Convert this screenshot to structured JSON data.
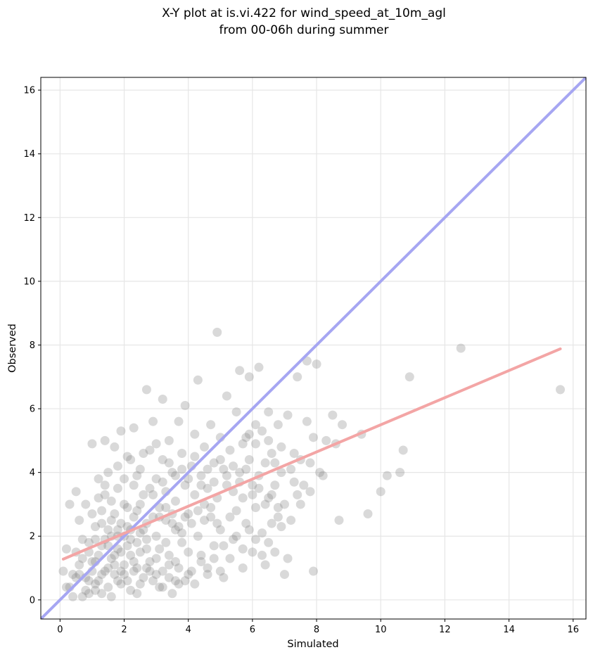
{
  "chart_data": {
    "type": "scatter",
    "title_line1": "X-Y plot at is.vi.422 for wind_speed_at_10m_agl",
    "title_line2": "from 00-06h during summer",
    "xlabel": "Simulated",
    "ylabel": "Observed",
    "xlim": [
      -0.6,
      16.4
    ],
    "ylim": [
      -0.6,
      16.4
    ],
    "xticks": [
      "0",
      "2",
      "4",
      "6",
      "8",
      "10",
      "12",
      "14",
      "16"
    ],
    "yticks": [
      "0",
      "2",
      "4",
      "6",
      "8",
      "10",
      "12",
      "14",
      "16"
    ],
    "grid": true,
    "identity_line": {
      "x": [
        -0.6,
        16.4
      ],
      "y": [
        -0.6,
        16.4
      ]
    },
    "regression_line": {
      "x": [
        0.1,
        15.6
      ],
      "y": [
        1.28,
        7.88
      ]
    },
    "colors": {
      "points": "#808080",
      "identity_line": "#a6a6f2",
      "regression_line": "#f3a5a5",
      "grid": "#e6e6e6"
    },
    "points": [
      [
        0.1,
        0.9
      ],
      [
        0.2,
        1.6
      ],
      [
        0.2,
        0.4
      ],
      [
        0.3,
        0.4
      ],
      [
        0.3,
        3.0
      ],
      [
        0.4,
        0.1
      ],
      [
        0.4,
        0.8
      ],
      [
        0.5,
        3.4
      ],
      [
        0.5,
        1.5
      ],
      [
        0.6,
        2.5
      ],
      [
        0.6,
        0.8
      ],
      [
        0.7,
        0.1
      ],
      [
        0.7,
        1.9
      ],
      [
        0.8,
        3.0
      ],
      [
        0.8,
        0.7
      ],
      [
        0.9,
        1.8
      ],
      [
        0.9,
        0.2
      ],
      [
        1.0,
        4.9
      ],
      [
        1.0,
        2.7
      ],
      [
        1.0,
        1.2
      ],
      [
        1.1,
        0.5
      ],
      [
        1.1,
        1.9
      ],
      [
        1.2,
        3.8
      ],
      [
        1.2,
        1.4
      ],
      [
        1.3,
        0.2
      ],
      [
        1.3,
        2.4
      ],
      [
        1.4,
        5.0
      ],
      [
        1.4,
        3.3
      ],
      [
        1.4,
        0.9
      ],
      [
        1.5,
        1.7
      ],
      [
        1.5,
        4.0
      ],
      [
        1.6,
        2.5
      ],
      [
        1.6,
        0.1
      ],
      [
        1.7,
        4.8
      ],
      [
        1.7,
        1.1
      ],
      [
        1.8,
        3.5
      ],
      [
        1.8,
        0.6
      ],
      [
        1.8,
        2.0
      ],
      [
        1.9,
        5.3
      ],
      [
        1.9,
        1.5
      ],
      [
        2.0,
        3.0
      ],
      [
        2.0,
        0.8
      ],
      [
        2.1,
        4.5
      ],
      [
        2.1,
        2.3
      ],
      [
        2.2,
        0.3
      ],
      [
        2.2,
        1.9
      ],
      [
        2.3,
        3.6
      ],
      [
        2.3,
        5.4
      ],
      [
        2.4,
        1.0
      ],
      [
        2.4,
        2.8
      ],
      [
        2.5,
        4.1
      ],
      [
        2.5,
        0.5
      ],
      [
        2.6,
        2.2
      ],
      [
        2.6,
        3.3
      ],
      [
        2.7,
        6.6
      ],
      [
        2.7,
        1.6
      ],
      [
        2.8,
        4.7
      ],
      [
        2.8,
        0.9
      ],
      [
        2.9,
        2.6
      ],
      [
        2.9,
        5.6
      ],
      [
        3.0,
        1.3
      ],
      [
        3.0,
        3.8
      ],
      [
        3.1,
        0.4
      ],
      [
        3.1,
        2.9
      ],
      [
        3.2,
        4.4
      ],
      [
        3.2,
        6.3
      ],
      [
        3.3,
        1.8
      ],
      [
        3.3,
        3.4
      ],
      [
        3.4,
        5.0
      ],
      [
        3.4,
        0.7
      ],
      [
        3.5,
        2.4
      ],
      [
        3.5,
        4.0
      ],
      [
        3.6,
        1.2
      ],
      [
        3.6,
        3.1
      ],
      [
        3.7,
        5.6
      ],
      [
        3.7,
        0.5
      ],
      [
        3.8,
        2.1
      ],
      [
        3.8,
        4.6
      ],
      [
        3.9,
        3.6
      ],
      [
        3.9,
        6.1
      ],
      [
        4.0,
        1.5
      ],
      [
        4.0,
        2.7
      ],
      [
        4.1,
        4.2
      ],
      [
        4.1,
        0.9
      ],
      [
        4.2,
        3.3
      ],
      [
        4.2,
        5.2
      ],
      [
        4.3,
        6.9
      ],
      [
        4.3,
        2.0
      ],
      [
        4.4,
        3.9
      ],
      [
        4.4,
        1.2
      ],
      [
        4.5,
        4.8
      ],
      [
        4.5,
        2.5
      ],
      [
        4.6,
        3.5
      ],
      [
        4.6,
        0.8
      ],
      [
        4.7,
        5.5
      ],
      [
        4.7,
        2.9
      ],
      [
        4.8,
        4.3
      ],
      [
        4.8,
        1.7
      ],
      [
        4.9,
        8.4
      ],
      [
        4.9,
        3.2
      ],
      [
        5.0,
        5.1
      ],
      [
        5.0,
        2.2
      ],
      [
        5.1,
        4.1
      ],
      [
        5.1,
        0.7
      ],
      [
        5.2,
        3.6
      ],
      [
        5.2,
        6.4
      ],
      [
        5.3,
        2.6
      ],
      [
        5.3,
        4.7
      ],
      [
        5.4,
        1.9
      ],
      [
        5.4,
        3.4
      ],
      [
        5.5,
        5.9
      ],
      [
        5.5,
        2.8
      ],
      [
        5.6,
        7.2
      ],
      [
        5.6,
        4.0
      ],
      [
        5.7,
        1.0
      ],
      [
        5.7,
        3.2
      ],
      [
        5.8,
        5.1
      ],
      [
        5.8,
        2.4
      ],
      [
        5.9,
        4.4
      ],
      [
        5.9,
        7.0
      ],
      [
        6.0,
        3.6
      ],
      [
        6.0,
        1.5
      ],
      [
        6.1,
        4.9
      ],
      [
        6.1,
        2.9
      ],
      [
        6.2,
        7.3
      ],
      [
        6.2,
        3.9
      ],
      [
        6.3,
        5.3
      ],
      [
        6.3,
        2.1
      ],
      [
        6.4,
        4.3
      ],
      [
        6.4,
        1.1
      ],
      [
        6.5,
        5.9
      ],
      [
        6.5,
        3.2
      ],
      [
        6.6,
        4.6
      ],
      [
        6.6,
        2.4
      ],
      [
        6.7,
        3.6
      ],
      [
        6.8,
        5.5
      ],
      [
        6.8,
        2.6
      ],
      [
        6.9,
        4.8
      ],
      [
        7.0,
        0.8
      ],
      [
        7.0,
        3.0
      ],
      [
        7.1,
        1.3
      ],
      [
        7.1,
        5.8
      ],
      [
        7.2,
        4.1
      ],
      [
        7.3,
        3.7
      ],
      [
        7.4,
        7.0
      ],
      [
        7.4,
        3.3
      ],
      [
        7.5,
        4.4
      ],
      [
        7.6,
        3.6
      ],
      [
        7.7,
        7.5
      ],
      [
        7.7,
        5.6
      ],
      [
        7.8,
        4.3
      ],
      [
        7.9,
        0.9
      ],
      [
        7.9,
        5.1
      ],
      [
        8.0,
        7.4
      ],
      [
        8.1,
        4.0
      ],
      [
        8.3,
        5.0
      ],
      [
        8.5,
        5.8
      ],
      [
        8.6,
        4.9
      ],
      [
        8.7,
        2.5
      ],
      [
        8.8,
        5.5
      ],
      [
        9.4,
        5.2
      ],
      [
        9.6,
        2.7
      ],
      [
        10.0,
        3.4
      ],
      [
        10.2,
        3.9
      ],
      [
        10.6,
        4.0
      ],
      [
        10.7,
        4.7
      ],
      [
        10.9,
        7.0
      ],
      [
        12.5,
        7.9
      ],
      [
        15.6,
        6.6
      ],
      [
        0.6,
        1.1
      ],
      [
        0.8,
        0.3
      ],
      [
        1.0,
        0.9
      ],
      [
        1.2,
        0.6
      ],
      [
        1.3,
        1.7
      ],
      [
        1.5,
        0.4
      ],
      [
        1.6,
        1.3
      ],
      [
        1.7,
        0.8
      ],
      [
        1.8,
        1.6
      ],
      [
        1.9,
        0.5
      ],
      [
        2.0,
        1.1
      ],
      [
        2.1,
        0.6
      ],
      [
        2.2,
        1.4
      ],
      [
        2.3,
        0.9
      ],
      [
        2.4,
        0.2
      ],
      [
        2.5,
        1.5
      ],
      [
        2.6,
        0.7
      ],
      [
        2.7,
        1.9
      ],
      [
        2.8,
        1.2
      ],
      [
        2.9,
        0.6
      ],
      [
        3.0,
        2.0
      ],
      [
        3.1,
        1.6
      ],
      [
        3.2,
        0.9
      ],
      [
        3.3,
        2.5
      ],
      [
        3.4,
        1.4
      ],
      [
        3.5,
        0.2
      ],
      [
        3.6,
        2.2
      ],
      [
        3.7,
        1.0
      ],
      [
        3.8,
        1.8
      ],
      [
        3.9,
        0.6
      ],
      [
        1.1,
        2.3
      ],
      [
        1.3,
        2.8
      ],
      [
        1.5,
        2.2
      ],
      [
        1.7,
        2.7
      ],
      [
        1.9,
        2.4
      ],
      [
        2.1,
        2.9
      ],
      [
        2.3,
        2.6
      ],
      [
        2.5,
        3.0
      ],
      [
        2.7,
        2.4
      ],
      [
        2.9,
        3.3
      ],
      [
        3.1,
        2.6
      ],
      [
        3.3,
        2.9
      ],
      [
        3.5,
        2.7
      ],
      [
        3.7,
        2.3
      ],
      [
        3.9,
        2.6
      ],
      [
        4.1,
        2.4
      ],
      [
        4.3,
        2.8
      ],
      [
        4.5,
        3.0
      ],
      [
        4.7,
        2.6
      ],
      [
        4.9,
        2.4
      ],
      [
        1.2,
        3.2
      ],
      [
        1.4,
        3.6
      ],
      [
        1.6,
        3.1
      ],
      [
        1.8,
        4.2
      ],
      [
        2.0,
        3.8
      ],
      [
        2.2,
        4.4
      ],
      [
        2.4,
        3.9
      ],
      [
        2.6,
        4.6
      ],
      [
        2.8,
        3.5
      ],
      [
        3.0,
        4.9
      ],
      [
        3.2,
        3.7
      ],
      [
        3.4,
        4.3
      ],
      [
        3.6,
        3.9
      ],
      [
        3.8,
        4.1
      ],
      [
        4.0,
        3.8
      ],
      [
        4.2,
        4.5
      ],
      [
        4.4,
        3.6
      ],
      [
        4.6,
        4.1
      ],
      [
        4.8,
        3.7
      ],
      [
        5.0,
        4.4
      ],
      [
        5.2,
        3.9
      ],
      [
        5.4,
        4.2
      ],
      [
        5.6,
        3.7
      ],
      [
        5.8,
        4.1
      ],
      [
        6.0,
        3.3
      ],
      [
        6.2,
        3.5
      ],
      [
        6.4,
        3.0
      ],
      [
        6.6,
        3.3
      ],
      [
        6.8,
        2.9
      ],
      [
        7.2,
        2.5
      ],
      [
        5.1,
        1.7
      ],
      [
        5.3,
        1.3
      ],
      [
        5.5,
        2.0
      ],
      [
        5.7,
        1.6
      ],
      [
        5.9,
        2.2
      ],
      [
        6.1,
        1.9
      ],
      [
        6.3,
        1.4
      ],
      [
        6.5,
        1.8
      ],
      [
        6.7,
        1.5
      ],
      [
        6.9,
        2.3
      ],
      [
        4.0,
        0.8
      ],
      [
        4.2,
        0.5
      ],
      [
        4.4,
        1.4
      ],
      [
        4.6,
        1.0
      ],
      [
        4.8,
        1.3
      ],
      [
        5.0,
        0.9
      ],
      [
        3.6,
        0.6
      ],
      [
        3.4,
        1.1
      ],
      [
        3.2,
        0.4
      ],
      [
        3.0,
        0.8
      ],
      [
        0.9,
        0.6
      ],
      [
        1.1,
        1.2
      ],
      [
        1.3,
        0.8
      ],
      [
        1.5,
        1.0
      ],
      [
        1.7,
        1.4
      ],
      [
        1.9,
        0.9
      ],
      [
        2.1,
        1.7
      ],
      [
        2.3,
        1.2
      ],
      [
        2.5,
        2.1
      ],
      [
        2.7,
        1.0
      ],
      [
        0.5,
        0.7
      ],
      [
        0.7,
        1.3
      ],
      [
        0.9,
        1.5
      ],
      [
        1.1,
        0.3
      ],
      [
        1.4,
        1.9
      ],
      [
        1.6,
        2.0
      ],
      [
        1.8,
        2.2
      ],
      [
        2.0,
        2.0
      ],
      [
        2.2,
        2.2
      ],
      [
        2.4,
        1.8
      ],
      [
        7.5,
        3.0
      ],
      [
        7.8,
        3.4
      ],
      [
        8.2,
        3.9
      ],
      [
        6.9,
        4.0
      ],
      [
        7.3,
        4.6
      ],
      [
        6.7,
        4.3
      ],
      [
        6.5,
        5.0
      ],
      [
        6.1,
        5.5
      ],
      [
        5.9,
        5.2
      ],
      [
        5.7,
        4.9
      ]
    ]
  }
}
